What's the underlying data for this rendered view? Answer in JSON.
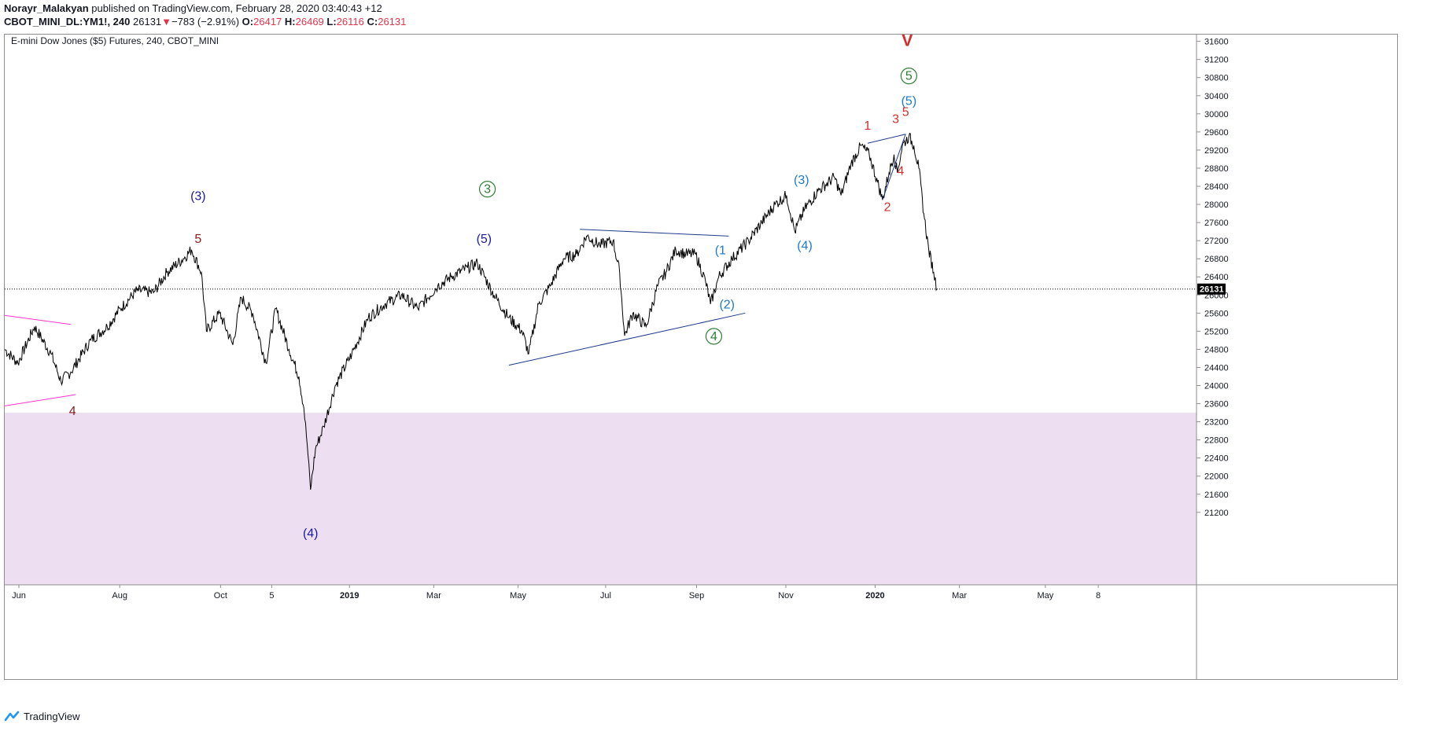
{
  "publish_line": {
    "author": "Norayr_Malakyan",
    "text": "published on TradingView.com, February 28, 2020 03:40:43 +12"
  },
  "ohlc_line": {
    "symbol": "CBOT_MINI_DL:YM1!, 240",
    "last": "26131",
    "arrow": "▼",
    "change": "−783 (−2.91%)",
    "o_label": "O:",
    "o": "26417",
    "h_label": "H:",
    "h": "26469",
    "l_label": "L:",
    "l": "26116",
    "c_label": "C:",
    "c": "26131"
  },
  "footer": {
    "brand": "TradingView"
  },
  "colors": {
    "price": "#000000",
    "wave_navy": "#1b1aa8",
    "wave_blue": "#1e7ac9",
    "wave_green": "#2e7d32",
    "wave_red": "#d32f2f",
    "wave_darkred": "#8b1a1a",
    "zone": "#eddff1",
    "magenta": "#ff33cc",
    "trendline": "#1e3a8a"
  },
  "chart_data": {
    "type": "line",
    "title": "E-mini Dow Jones ($5) Futures, 240, CBOT_MINI",
    "x_ticks": [
      "Jun",
      "Aug",
      "Oct",
      "5",
      "2019",
      "Mar",
      "May",
      "Jul",
      "Sep",
      "Nov",
      "2020",
      "Mar",
      "May",
      "8"
    ],
    "y_ticks": [
      21200,
      21600,
      22000,
      22400,
      22800,
      23200,
      23600,
      24000,
      24400,
      24800,
      25200,
      25600,
      26000,
      26400,
      26800,
      27200,
      27600,
      28000,
      28400,
      28800,
      29200,
      29600,
      30000,
      30400,
      30800,
      31200,
      31600
    ],
    "ylim": [
      19600,
      31750
    ],
    "x_range_days": [
      0,
      721
    ],
    "last_price": 26131,
    "last_price_label": "26131",
    "series": [
      {
        "values": [
          {
            "x": 0,
            "y": 24800
          },
          {
            "x": 8,
            "y": 24500
          },
          {
            "x": 18,
            "y": 25300
          },
          {
            "x": 28,
            "y": 24700
          },
          {
            "x": 34,
            "y": 24100
          },
          {
            "x": 40,
            "y": 24300
          },
          {
            "x": 52,
            "y": 25000
          },
          {
            "x": 62,
            "y": 25300
          },
          {
            "x": 70,
            "y": 25700
          },
          {
            "x": 80,
            "y": 26100
          },
          {
            "x": 90,
            "y": 26050
          },
          {
            "x": 98,
            "y": 26500
          },
          {
            "x": 108,
            "y": 26800
          },
          {
            "x": 113,
            "y": 27000
          },
          {
            "x": 119,
            "y": 26500
          },
          {
            "x": 122,
            "y": 25200
          },
          {
            "x": 130,
            "y": 25600
          },
          {
            "x": 138,
            "y": 24900
          },
          {
            "x": 143,
            "y": 25950
          },
          {
            "x": 150,
            "y": 25600
          },
          {
            "x": 158,
            "y": 24500
          },
          {
            "x": 164,
            "y": 25700
          },
          {
            "x": 172,
            "y": 24800
          },
          {
            "x": 178,
            "y": 24200
          },
          {
            "x": 181,
            "y": 23500
          },
          {
            "x": 183,
            "y": 22700
          },
          {
            "x": 185,
            "y": 21700
          },
          {
            "x": 188,
            "y": 22600
          },
          {
            "x": 193,
            "y": 23100
          },
          {
            "x": 200,
            "y": 24000
          },
          {
            "x": 210,
            "y": 24700
          },
          {
            "x": 220,
            "y": 25500
          },
          {
            "x": 230,
            "y": 25800
          },
          {
            "x": 240,
            "y": 26000
          },
          {
            "x": 250,
            "y": 25700
          },
          {
            "x": 262,
            "y": 26200
          },
          {
            "x": 270,
            "y": 26400
          },
          {
            "x": 280,
            "y": 26600
          },
          {
            "x": 286,
            "y": 26700
          },
          {
            "x": 296,
            "y": 26000
          },
          {
            "x": 305,
            "y": 25500
          },
          {
            "x": 313,
            "y": 25200
          },
          {
            "x": 317,
            "y": 24700
          },
          {
            "x": 323,
            "y": 25800
          },
          {
            "x": 330,
            "y": 26200
          },
          {
            "x": 338,
            "y": 26800
          },
          {
            "x": 346,
            "y": 26900
          },
          {
            "x": 352,
            "y": 27300
          },
          {
            "x": 360,
            "y": 27100
          },
          {
            "x": 368,
            "y": 27200
          },
          {
            "x": 372,
            "y": 26500
          },
          {
            "x": 375,
            "y": 25100
          },
          {
            "x": 380,
            "y": 25600
          },
          {
            "x": 388,
            "y": 25300
          },
          {
            "x": 395,
            "y": 26200
          },
          {
            "x": 400,
            "y": 26500
          },
          {
            "x": 406,
            "y": 27000
          },
          {
            "x": 412,
            "y": 26900
          },
          {
            "x": 418,
            "y": 26900
          },
          {
            "x": 424,
            "y": 26300
          },
          {
            "x": 427,
            "y": 25800
          },
          {
            "x": 432,
            "y": 26400
          },
          {
            "x": 440,
            "y": 26800
          },
          {
            "x": 450,
            "y": 27200
          },
          {
            "x": 458,
            "y": 27600
          },
          {
            "x": 466,
            "y": 28000
          },
          {
            "x": 473,
            "y": 28200
          },
          {
            "x": 478,
            "y": 27400
          },
          {
            "x": 484,
            "y": 27900
          },
          {
            "x": 492,
            "y": 28300
          },
          {
            "x": 502,
            "y": 28600
          },
          {
            "x": 506,
            "y": 28200
          },
          {
            "x": 512,
            "y": 28900
          },
          {
            "x": 518,
            "y": 29300
          },
          {
            "x": 523,
            "y": 29100
          },
          {
            "x": 528,
            "y": 28500
          },
          {
            "x": 531,
            "y": 28100
          },
          {
            "x": 535,
            "y": 28700
          },
          {
            "x": 538,
            "y": 29100
          },
          {
            "x": 540,
            "y": 28700
          },
          {
            "x": 543,
            "y": 29300
          },
          {
            "x": 547,
            "y": 29500
          },
          {
            "x": 550,
            "y": 29300
          },
          {
            "x": 553,
            "y": 28800
          },
          {
            "x": 556,
            "y": 27800
          },
          {
            "x": 559,
            "y": 27000
          },
          {
            "x": 562,
            "y": 26500
          },
          {
            "x": 564,
            "y": 26131
          }
        ]
      }
    ],
    "annotations": [
      {
        "text": "(3)",
        "x": 117,
        "y": 28100,
        "style": "wave_navy"
      },
      {
        "text": "5",
        "x": 117,
        "y": 27150,
        "style": "wave_darkred"
      },
      {
        "text": "(4)",
        "x": 185,
        "y": 20650,
        "style": "wave_navy"
      },
      {
        "text": "3",
        "x": 292,
        "y": 28250,
        "style": "wave_green",
        "circle": true
      },
      {
        "text": "(5)",
        "x": 290,
        "y": 27150,
        "style": "wave_navy"
      },
      {
        "text": "4",
        "x": 41,
        "y": 23350,
        "style": "wave_darkred"
      },
      {
        "text": "(1",
        "x": 433,
        "y": 26900,
        "style": "wave_blue"
      },
      {
        "text": "(2)",
        "x": 437,
        "y": 25700,
        "style": "wave_blue"
      },
      {
        "text": "4",
        "x": 429,
        "y": 25000,
        "style": "wave_green",
        "circle": true
      },
      {
        "text": "(3)",
        "x": 482,
        "y": 28450,
        "style": "wave_blue"
      },
      {
        "text": "(4)",
        "x": 484,
        "y": 27000,
        "style": "wave_blue"
      },
      {
        "text": "1",
        "x": 522,
        "y": 29650,
        "style": "wave_red"
      },
      {
        "text": "2",
        "x": 534,
        "y": 27850,
        "style": "wave_red"
      },
      {
        "text": "3",
        "x": 539,
        "y": 29800,
        "style": "wave_red"
      },
      {
        "text": "4",
        "x": 542,
        "y": 28650,
        "style": "wave_red"
      },
      {
        "text": "5",
        "x": 545,
        "y": 29950,
        "style": "wave_red"
      },
      {
        "text": "(5)",
        "x": 547,
        "y": 30200,
        "style": "wave_blue"
      },
      {
        "text": "5",
        "x": 547,
        "y": 30750,
        "style": "wave_green",
        "circle": true
      },
      {
        "text": "V",
        "x": 546,
        "y": 31500,
        "style": "wave_red",
        "bold": true
      }
    ],
    "trendlines": [
      {
        "from": {
          "x": 348,
          "y": 27450
        },
        "to": {
          "x": 438,
          "y": 27300
        },
        "style": "trendline"
      },
      {
        "from": {
          "x": 305,
          "y": 24450
        },
        "to": {
          "x": 448,
          "y": 25600
        },
        "style": "trendline"
      },
      {
        "from": {
          "x": 522,
          "y": 29350
        },
        "to": {
          "x": 545,
          "y": 29550
        },
        "style": "trendline"
      },
      {
        "from": {
          "x": 531,
          "y": 28100
        },
        "to": {
          "x": 545,
          "y": 29550
        },
        "style": "trendline"
      },
      {
        "from": {
          "x": 0,
          "y": 25550
        },
        "to": {
          "x": 40,
          "y": 25350
        },
        "style": "magenta"
      },
      {
        "from": {
          "x": 0,
          "y": 23550
        },
        "to": {
          "x": 43,
          "y": 23800
        },
        "style": "magenta"
      }
    ],
    "zone": {
      "y_low": 19600,
      "y_high": 23400,
      "style": "zone"
    }
  }
}
